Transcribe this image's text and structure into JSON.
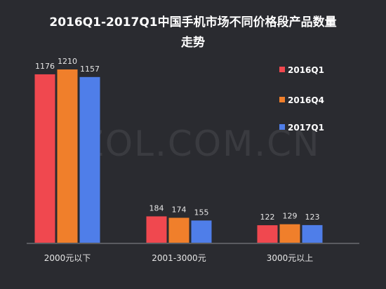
{
  "chart_data": {
    "type": "bar",
    "title_line1": "2016Q1-2017Q1中国手机市场不同价格段产品数量",
    "title_line2": "走势",
    "watermark": "ZOL.COM.CN",
    "categories": [
      "2000元以下",
      "2001-3000元",
      "3000元以上"
    ],
    "series": [
      {
        "name": "2016Q1",
        "color": "#f0484f",
        "values": [
          1176,
          184,
          122
        ]
      },
      {
        "name": "2016Q4",
        "color": "#f07f2b",
        "values": [
          1210,
          174,
          129
        ]
      },
      {
        "name": "2017Q1",
        "color": "#4f7ee9",
        "values": [
          1157,
          155,
          123
        ]
      }
    ],
    "ylim": [
      0,
      1210
    ],
    "legend_position": "top-right",
    "grid": false
  }
}
